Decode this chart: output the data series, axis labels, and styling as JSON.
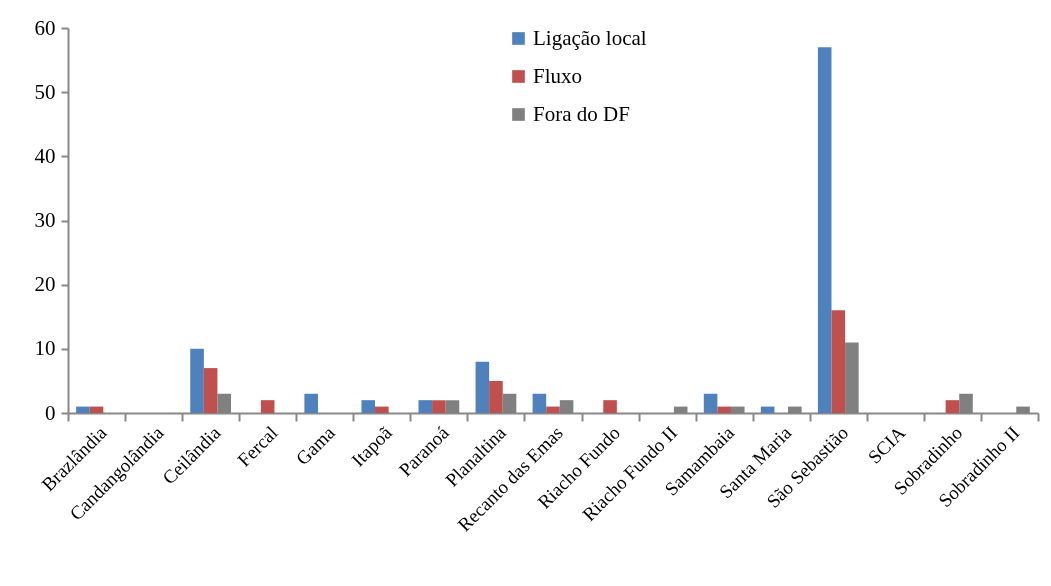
{
  "chart_data": {
    "type": "bar",
    "categories": [
      "Brazlândia",
      "Candangolândia",
      "Ceilândia",
      "Fercal",
      "Gama",
      "Itapoã",
      "Paranoá",
      "Planaltina",
      "Recanto das Emas",
      "Riacho Fundo",
      "Riacho Fundo II",
      "Samambaia",
      "Santa Maria",
      "São Sebastião",
      "SCIA",
      "Sobradinho",
      "Sobradinho II"
    ],
    "series": [
      {
        "name": "Ligação local",
        "color": "#4f81bd",
        "values": [
          1,
          0,
          10,
          0,
          3,
          2,
          2,
          8,
          3,
          0,
          0,
          3,
          1,
          57,
          0,
          0,
          0
        ]
      },
      {
        "name": "Fluxo",
        "color": "#c0504d",
        "values": [
          1,
          0,
          7,
          2,
          0,
          1,
          2,
          5,
          1,
          2,
          0,
          1,
          0,
          16,
          0,
          2,
          0
        ]
      },
      {
        "name": "Fora do DF",
        "color": "#808080",
        "values": [
          0,
          0,
          3,
          0,
          0,
          0,
          2,
          3,
          2,
          0,
          1,
          1,
          1,
          11,
          0,
          3,
          1
        ]
      }
    ],
    "ylim": [
      0,
      60
    ],
    "yticks": [
      0,
      10,
      20,
      30,
      40,
      50,
      60
    ],
    "grid": false,
    "legend": "top right"
  }
}
